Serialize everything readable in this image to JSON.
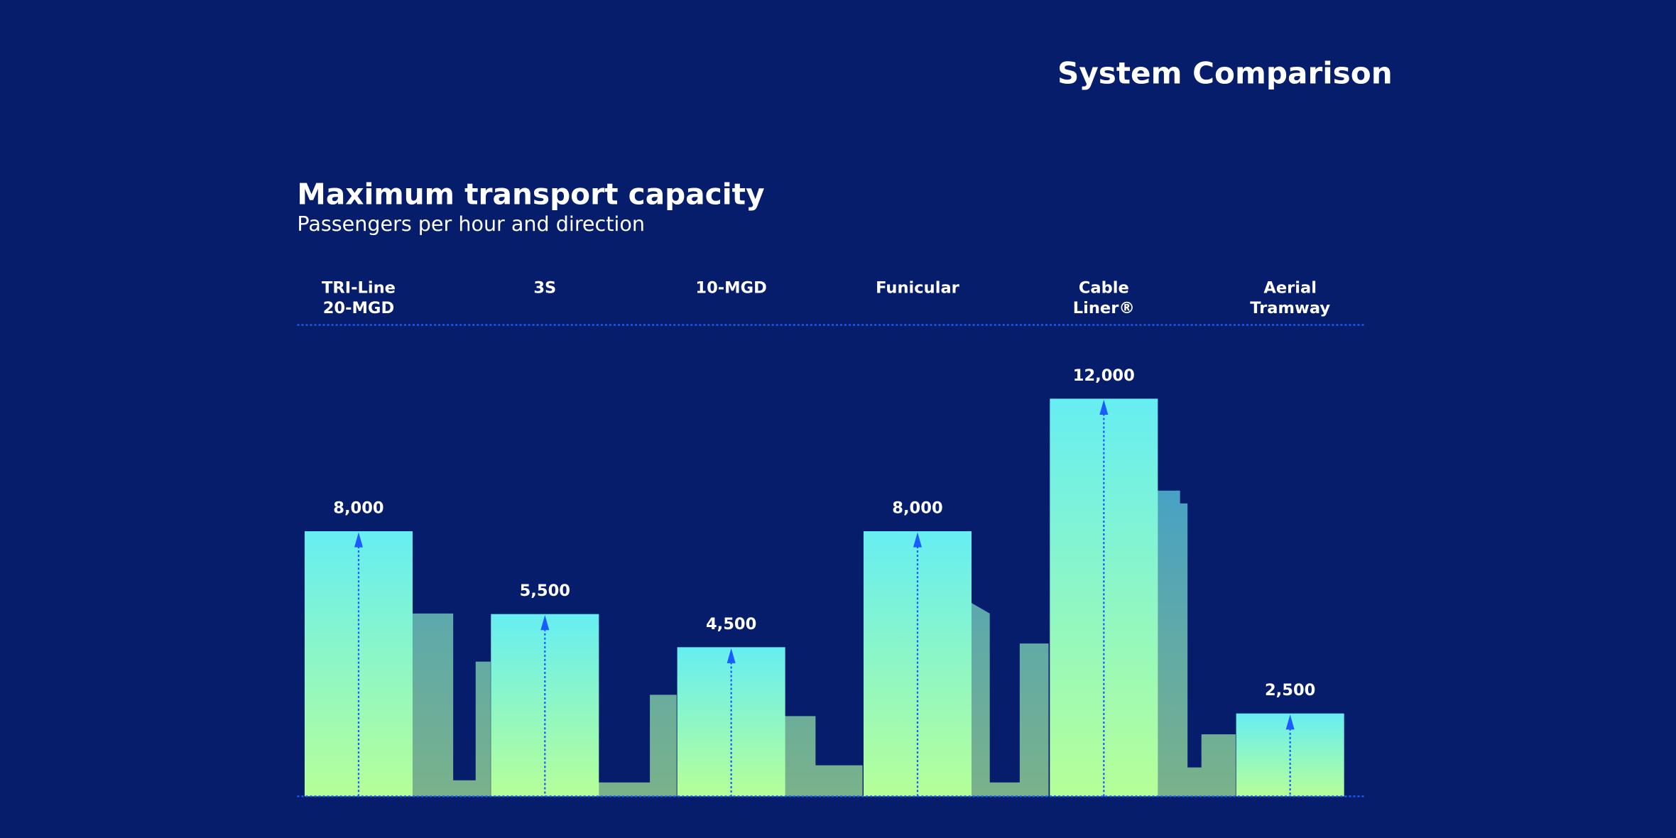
{
  "page_title": "System Comparison",
  "colors": {
    "background": "#061d6b",
    "bar_top": "#66eef2",
    "bar_bottom": "#b6ff98",
    "shadow": "#5aa6b0",
    "dotted_line": "#1a5cff"
  },
  "chart_data": {
    "type": "bar",
    "title": "Maximum transport capacity",
    "subtitle": "Passengers per hour and direction",
    "categories": [
      [
        "TRI-Line",
        "20-MGD"
      ],
      [
        "3S"
      ],
      [
        "10-MGD"
      ],
      [
        "Funicular"
      ],
      [
        "Cable",
        "Liner®"
      ],
      [
        "Aerial",
        "Tramway"
      ]
    ],
    "values": [
      8000,
      5500,
      4500,
      8000,
      12000,
      2500
    ],
    "value_labels": [
      "8,000",
      "5,500",
      "4,500",
      "8,000",
      "12,000",
      "2,500"
    ],
    "ylim": [
      0,
      12000
    ],
    "grid": false,
    "legend": "none"
  }
}
